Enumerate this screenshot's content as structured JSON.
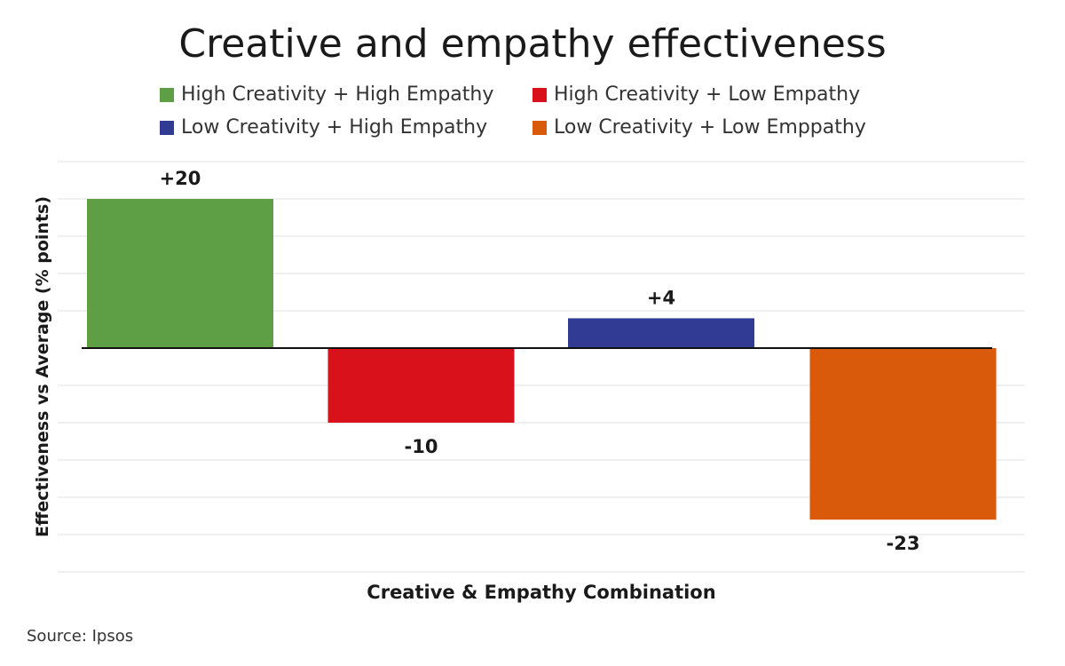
{
  "title": "Creative and empathy effectiveness",
  "source": "Source: Ipsos",
  "colors": {
    "green": "#5e9e45",
    "red": "#d9111a",
    "blue": "#323b94",
    "orange": "#d85a0a",
    "grid": "#e6e6e6",
    "axis": "#111111"
  },
  "legend": [
    {
      "label": "High Creativity + High Empathy",
      "color": "#5e9e45"
    },
    {
      "label": "High Creativity + Low Empathy",
      "color": "#d9111a"
    },
    {
      "label": "Low Creativity + High Empathy",
      "color": "#323b94"
    },
    {
      "label": "Low Creativity + Low Emppathy",
      "color": "#d85a0a"
    }
  ],
  "chart_data": {
    "type": "bar",
    "title": "Creative and empathy effectiveness",
    "xlabel": "Creative & Empathy Combination",
    "ylabel": "Effectiveness vs Average (% points)",
    "categories": [
      "High Creativity + High Empathy",
      "High Creativity + Low Empathy",
      "Low Creativity + High Empathy",
      "Low Creativity + Low Emppathy"
    ],
    "values": [
      20,
      -10,
      4,
      -23
    ],
    "data_labels": [
      "+20",
      "-10",
      "+4",
      "-23"
    ],
    "colors": [
      "#5e9e45",
      "#d9111a",
      "#323b94",
      "#d85a0a"
    ],
    "ylim": [
      -30,
      25
    ],
    "grid": true,
    "legend_position": "top"
  }
}
